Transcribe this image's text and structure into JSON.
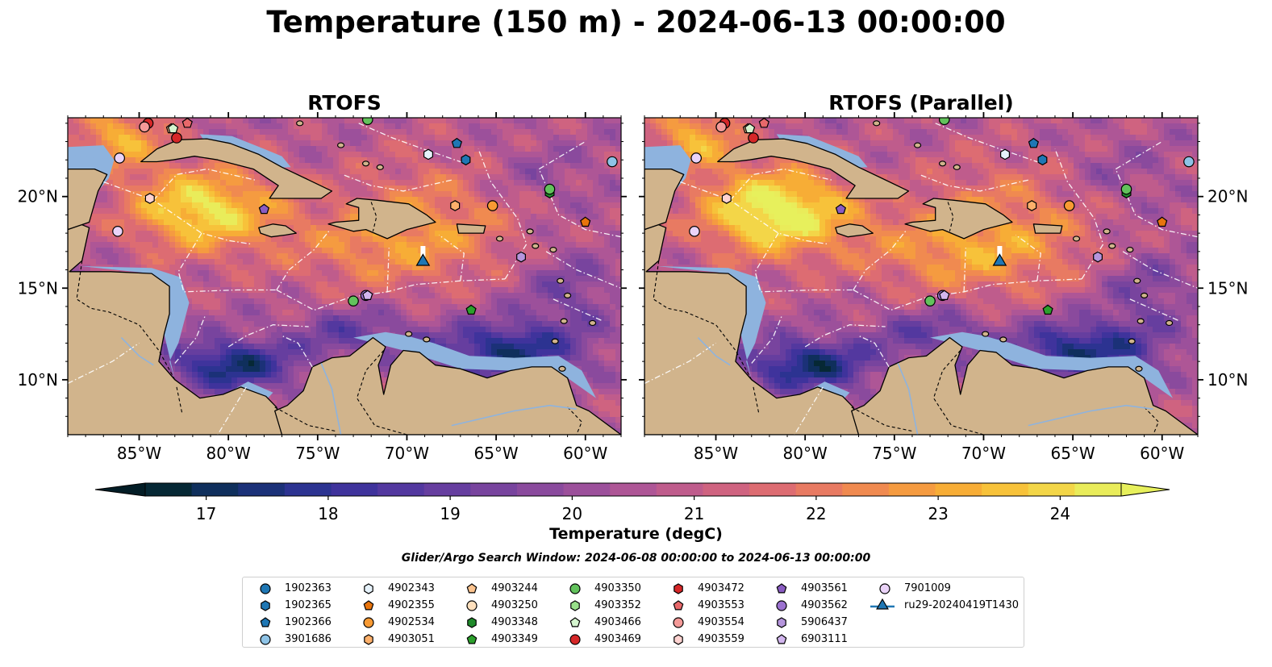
{
  "figure": {
    "title": "Temperature (150 m) - 2024-06-13 00:00:00",
    "panels": [
      {
        "title": "RTOFS"
      },
      {
        "title": "RTOFS (Parallel)"
      }
    ],
    "lon_ticks": [
      {
        "value": -85,
        "label": "85°W"
      },
      {
        "value": -80,
        "label": "80°W"
      },
      {
        "value": -75,
        "label": "75°W"
      },
      {
        "value": -70,
        "label": "70°W"
      },
      {
        "value": -65,
        "label": "65°W"
      },
      {
        "value": -60,
        "label": "60°W"
      }
    ],
    "lat_ticks": [
      {
        "value": 20,
        "label": "20°N"
      },
      {
        "value": 15,
        "label": "15°N"
      },
      {
        "value": 10,
        "label": "10°N"
      }
    ],
    "extent": {
      "lon": [
        -89,
        -58
      ],
      "lat": [
        7,
        24.3
      ]
    }
  },
  "colorbar": {
    "label": "Temperature (degC)",
    "ticks": [
      17,
      18,
      19,
      20,
      21,
      22,
      23,
      24
    ],
    "range": [
      16.5,
      24.5
    ],
    "extend": "both",
    "colors": [
      "#062835",
      "#0f2f5c",
      "#1b3178",
      "#2c3391",
      "#3f339c",
      "#53389f",
      "#663e9f",
      "#78449e",
      "#8a4a9d",
      "#9c509b",
      "#ae5696",
      "#bf5c8c",
      "#cf6380",
      "#dd6c72",
      "#e87a62",
      "#f08a50",
      "#f59b40",
      "#f7ad36",
      "#f7c23a",
      "#f3d648",
      "#e9ec5a"
    ],
    "under_color": "#031d26",
    "over_color": "#e7f05c"
  },
  "search_window": "Glider/Argo Search Window: 2024-06-08 00:00:00 to 2024-06-13 00:00:00",
  "legend": [
    {
      "label": "1902363",
      "marker": "circle",
      "color": "#1f77b4"
    },
    {
      "label": "1902365",
      "marker": "hexagon",
      "color": "#1f77b4"
    },
    {
      "label": "1902366",
      "marker": "pentagon",
      "color": "#1f77b4"
    },
    {
      "label": "3901686",
      "marker": "circle",
      "color": "#8ec3e6"
    },
    {
      "label": "4902343",
      "marker": "hexagon",
      "color": "#e6f2fb"
    },
    {
      "label": "4902355",
      "marker": "pentagon",
      "color": "#e8740c"
    },
    {
      "label": "4902534",
      "marker": "circle",
      "color": "#f89a33"
    },
    {
      "label": "4903051",
      "marker": "hexagon",
      "color": "#fdb06b"
    },
    {
      "label": "4903244",
      "marker": "pentagon",
      "color": "#fdc48f"
    },
    {
      "label": "4903250",
      "marker": "circle",
      "color": "#ffe0bd"
    },
    {
      "label": "4903348",
      "marker": "hexagon",
      "color": "#1f8a2a"
    },
    {
      "label": "4903349",
      "marker": "pentagon",
      "color": "#2ca02c"
    },
    {
      "label": "4903350",
      "marker": "circle",
      "color": "#62c25c"
    },
    {
      "label": "4903352",
      "marker": "hexagon",
      "color": "#98df8a"
    },
    {
      "label": "4903466",
      "marker": "pentagon",
      "color": "#d5f5cf"
    },
    {
      "label": "4903469",
      "marker": "circle",
      "color": "#d62728"
    },
    {
      "label": "4903472",
      "marker": "hexagon",
      "color": "#d62728"
    },
    {
      "label": "4903553",
      "marker": "pentagon",
      "color": "#e8686a"
    },
    {
      "label": "4903554",
      "marker": "circle",
      "color": "#f49a98"
    },
    {
      "label": "4903559",
      "marker": "hexagon",
      "color": "#ffd3d1"
    },
    {
      "label": "4903561",
      "marker": "pentagon",
      "color": "#8a5cc2"
    },
    {
      "label": "4903562",
      "marker": "circle",
      "color": "#9b71cf"
    },
    {
      "label": "5906437",
      "marker": "hexagon",
      "color": "#b595dc"
    },
    {
      "label": "6903111",
      "marker": "pentagon",
      "color": "#d2b6ee"
    },
    {
      "label": "7901009",
      "marker": "circle",
      "color": "#ead3f8"
    },
    {
      "label": "ru29-20240419T1430",
      "marker": "triangle-line",
      "color": "#1f77b4"
    }
  ],
  "platforms": [
    {
      "id": "1902365",
      "lon": -66.7,
      "lat": 22.0
    },
    {
      "id": "1902366",
      "lon": -67.2,
      "lat": 22.9
    },
    {
      "id": "3901686",
      "lon": -58.5,
      "lat": 21.9
    },
    {
      "id": "4902343",
      "lon": -68.8,
      "lat": 22.3
    },
    {
      "id": "4902355",
      "lon": -60.0,
      "lat": 18.6
    },
    {
      "id": "4902534",
      "lon": -65.2,
      "lat": 19.5
    },
    {
      "id": "4903051",
      "lon": -67.3,
      "lat": 19.5
    },
    {
      "id": "4903244",
      "lon": -83.2,
      "lat": 23.7
    },
    {
      "id": "4903250",
      "lon": -84.7,
      "lat": 23.8
    },
    {
      "id": "4903348",
      "lon": -62.0,
      "lat": 20.2
    },
    {
      "id": "4903349",
      "lon": -66.4,
      "lat": 13.8
    },
    {
      "id": "4903350",
      "lon": -73.0,
      "lat": 14.3
    },
    {
      "id": "4903350",
      "lon": -62.0,
      "lat": 20.4
    },
    {
      "id": "4903350",
      "lon": -72.2,
      "lat": 24.2
    },
    {
      "id": "4903466",
      "lon": -83.1,
      "lat": 23.7
    },
    {
      "id": "4903469",
      "lon": -82.9,
      "lat": 23.2
    },
    {
      "id": "4903469",
      "lon": -84.5,
      "lat": 24.0
    },
    {
      "id": "4903553",
      "lon": -82.3,
      "lat": 24.0
    },
    {
      "id": "4903554",
      "lon": -84.7,
      "lat": 23.8
    },
    {
      "id": "4903559",
      "lon": -84.4,
      "lat": 19.9
    },
    {
      "id": "4903561",
      "lon": -78.0,
      "lat": 19.3
    },
    {
      "id": "4903562",
      "lon": -72.3,
      "lat": 14.6
    },
    {
      "id": "5906437",
      "lon": -63.6,
      "lat": 16.7
    },
    {
      "id": "6903111",
      "lon": -72.2,
      "lat": 14.6
    },
    {
      "id": "7901009",
      "lon": -86.1,
      "lat": 22.1
    },
    {
      "id": "7901009",
      "lon": -86.2,
      "lat": 18.1
    }
  ],
  "glider_track": {
    "id": "ru29-20240419T1430",
    "lon": [
      -69.1,
      -69.1,
      -69.1
    ],
    "lat": [
      17.3,
      17.0,
      16.7
    ],
    "last": {
      "lon": -69.1,
      "lat": 16.4
    }
  }
}
